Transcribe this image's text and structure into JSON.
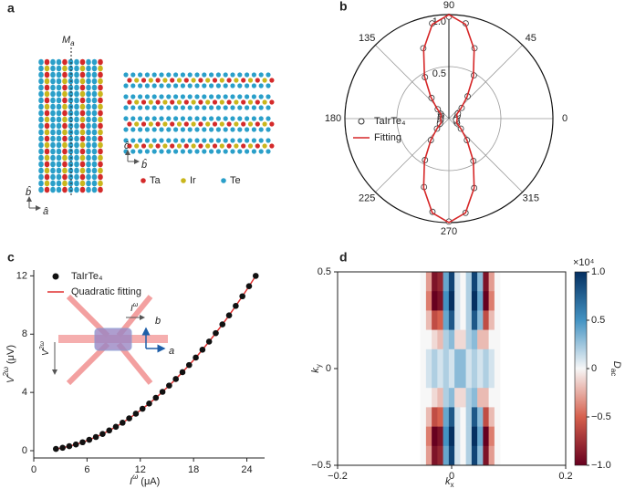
{
  "panel_labels": [
    "a",
    "b",
    "c",
    "d"
  ],
  "structure": {
    "mirror_label": [
      "M",
      "a"
    ],
    "legend": [
      {
        "name": "Ta",
        "color": "#d42a2a"
      },
      {
        "name": "Ir",
        "color": "#c9b61c"
      },
      {
        "name": "Te",
        "color": "#2a9fc9"
      }
    ],
    "axes_left": [
      "b̂",
      "â"
    ],
    "axes_right": [
      "ĉ",
      "b̂"
    ]
  },
  "chart_data": [
    {
      "type": "polar",
      "theta": [
        0,
        10,
        20,
        30,
        40,
        50,
        60,
        70,
        80,
        90,
        100,
        110,
        120,
        130,
        140,
        150,
        160,
        170,
        180,
        190,
        200,
        210,
        220,
        230,
        240,
        250,
        260,
        270,
        280,
        290,
        300,
        310,
        320,
        330,
        340,
        350
      ],
      "series": [
        {
          "name": "TaIrTe₄",
          "mode": "markers",
          "color": "#333333",
          "values": [
            0.07,
            0.08,
            0.09,
            0.1,
            0.16,
            0.28,
            0.48,
            0.72,
            0.93,
            0.98,
            0.93,
            0.72,
            0.46,
            0.26,
            0.14,
            0.09,
            0.08,
            0.08,
            0.08,
            0.08,
            0.09,
            0.1,
            0.15,
            0.27,
            0.46,
            0.7,
            0.91,
            0.99,
            0.92,
            0.71,
            0.47,
            0.27,
            0.15,
            0.09,
            0.08,
            0.07
          ]
        },
        {
          "name": "Fitting",
          "mode": "line",
          "color": "#d62728",
          "values": [
            0.08,
            0.08,
            0.08,
            0.09,
            0.15,
            0.27,
            0.47,
            0.71,
            0.92,
            1.0,
            0.92,
            0.71,
            0.47,
            0.27,
            0.15,
            0.09,
            0.08,
            0.08,
            0.08,
            0.08,
            0.08,
            0.09,
            0.15,
            0.27,
            0.47,
            0.71,
            0.92,
            1.0,
            0.92,
            0.71,
            0.47,
            0.27,
            0.15,
            0.09,
            0.08,
            0.08
          ]
        }
      ],
      "rlim": [
        0,
        1.0
      ],
      "rticks": [
        0.5,
        {
          "value": 1,
          "label": "1.0"
        }
      ],
      "thetaticks": [
        0,
        45,
        90,
        135,
        180,
        225,
        270,
        315
      ]
    },
    {
      "type": "scatter",
      "x": [
        2.5,
        3.25,
        4.0,
        4.75,
        5.5,
        6.25,
        7.0,
        7.75,
        8.5,
        9.25,
        10.0,
        10.75,
        11.5,
        12.25,
        13.0,
        13.75,
        14.5,
        15.25,
        16.0,
        16.75,
        17.5,
        18.25,
        19.0,
        19.75,
        20.5,
        21.25,
        22.0,
        22.75,
        23.5,
        24.25,
        25.0
      ],
      "series": [
        {
          "name": "TaIrTe₄",
          "mode": "markers",
          "color": "#111111",
          "values": [
            0.12,
            0.2,
            0.31,
            0.43,
            0.58,
            0.75,
            0.94,
            1.15,
            1.39,
            1.64,
            1.92,
            2.22,
            2.54,
            2.88,
            3.24,
            3.63,
            4.04,
            4.47,
            4.92,
            5.39,
            5.88,
            6.39,
            6.93,
            7.49,
            8.07,
            8.67,
            9.29,
            9.94,
            10.6,
            11.29,
            12.0
          ]
        },
        {
          "name": "Quadratic fitting",
          "mode": "line",
          "color": "#e03030",
          "values": [
            0.12,
            0.2,
            0.31,
            0.43,
            0.58,
            0.75,
            0.94,
            1.15,
            1.39,
            1.64,
            1.92,
            2.22,
            2.54,
            2.88,
            3.24,
            3.63,
            4.04,
            4.47,
            4.92,
            5.39,
            5.88,
            6.39,
            6.93,
            7.49,
            8.07,
            8.67,
            9.29,
            9.94,
            10.6,
            11.29,
            12.0
          ]
        }
      ],
      "xlim": [
        0,
        26
      ],
      "ylim": [
        -0.5,
        12.4
      ],
      "xticks": [
        0,
        6,
        12,
        18,
        24
      ],
      "yticks": [
        0,
        4,
        8,
        12
      ],
      "xlabel": [
        "I",
        "ω",
        "(μA)"
      ],
      "ylabel": [
        "V",
        "2ω",
        "(μV)"
      ],
      "inset": {
        "current": [
          "I",
          "ω"
        ],
        "voltage": [
          "V",
          "2ω"
        ],
        "axis_b": "b",
        "axis_a": "a"
      }
    },
    {
      "type": "heatmap",
      "x": [
        -0.05,
        -0.04,
        -0.03,
        -0.02,
        -0.01,
        0.0,
        0.01,
        0.02,
        0.03,
        0.04,
        0.05,
        0.06,
        0.07,
        0.08
      ],
      "y": [
        0.45,
        0.35,
        0.25,
        0.15,
        0.05,
        -0.05,
        -0.15,
        -0.25,
        -0.35,
        -0.45
      ],
      "z": [
        [
          0,
          -0.3,
          -0.9,
          -0.8,
          0.4,
          0.9,
          0.1,
          0,
          0.2,
          0.9,
          0.3,
          -0.9,
          -0.3,
          0
        ],
        [
          0,
          -0.4,
          -1.0,
          -0.9,
          0.5,
          1.0,
          0.1,
          0,
          0.2,
          1.0,
          0.4,
          -1.0,
          -0.4,
          0
        ],
        [
          0,
          -0.2,
          -0.6,
          -0.5,
          0.4,
          0.8,
          0.1,
          0,
          0.2,
          0.8,
          0.3,
          -0.6,
          -0.2,
          0
        ],
        [
          0,
          0,
          -0.1,
          -0.2,
          0.2,
          0.3,
          -0.1,
          -0.1,
          0.2,
          0.3,
          -0.2,
          -0.2,
          0,
          0
        ],
        [
          0,
          0.1,
          0.2,
          0.1,
          0.2,
          0.1,
          0.3,
          0.3,
          0.1,
          0.2,
          0.1,
          0.2,
          0.1,
          0
        ],
        [
          0,
          0.1,
          0.2,
          0.1,
          0.2,
          0.1,
          0.3,
          0.3,
          0.1,
          0.2,
          0.1,
          0.2,
          0.1,
          0
        ],
        [
          0,
          0,
          -0.1,
          -0.2,
          0.2,
          0.3,
          -0.1,
          -0.1,
          0.2,
          0.3,
          -0.2,
          -0.2,
          0,
          0
        ],
        [
          0,
          -0.2,
          -0.6,
          -0.5,
          0.4,
          0.8,
          0.1,
          0,
          0.2,
          0.8,
          0.3,
          -0.6,
          -0.2,
          0
        ],
        [
          0,
          -0.4,
          -1.0,
          -0.9,
          0.5,
          1.0,
          0.1,
          0,
          0.2,
          1.0,
          0.4,
          -1.0,
          -0.4,
          0
        ],
        [
          0,
          -0.3,
          -0.9,
          -0.8,
          0.4,
          0.9,
          0.1,
          0,
          0.2,
          0.9,
          0.3,
          -0.9,
          -0.3,
          0
        ]
      ],
      "xlim": [
        -0.2,
        0.2
      ],
      "ylim": [
        -0.5,
        0.5
      ],
      "xticks": [
        {
          "value": -0.2,
          "label": "−0.2"
        },
        0,
        0.2
      ],
      "yticks": [
        {
          "value": -0.5,
          "label": "−0.5"
        },
        0,
        0.5
      ],
      "xlabel": [
        "k",
        "x"
      ],
      "ylabel": [
        "k",
        "y"
      ],
      "colormap": [
        "#67001f",
        "#d6604d",
        "#f7f7f7",
        "#4393c3",
        "#053061"
      ],
      "colorbar": {
        "lim": [
          -1,
          1
        ],
        "exponent": "×10⁴",
        "label": [
          "D",
          "ac"
        ],
        "ticks": [
          {
            "value": -1,
            "label": "−1.0"
          },
          {
            "value": -0.5,
            "label": "−0.5"
          },
          0,
          0.5,
          {
            "value": 1,
            "label": "1.0"
          }
        ]
      }
    }
  ]
}
